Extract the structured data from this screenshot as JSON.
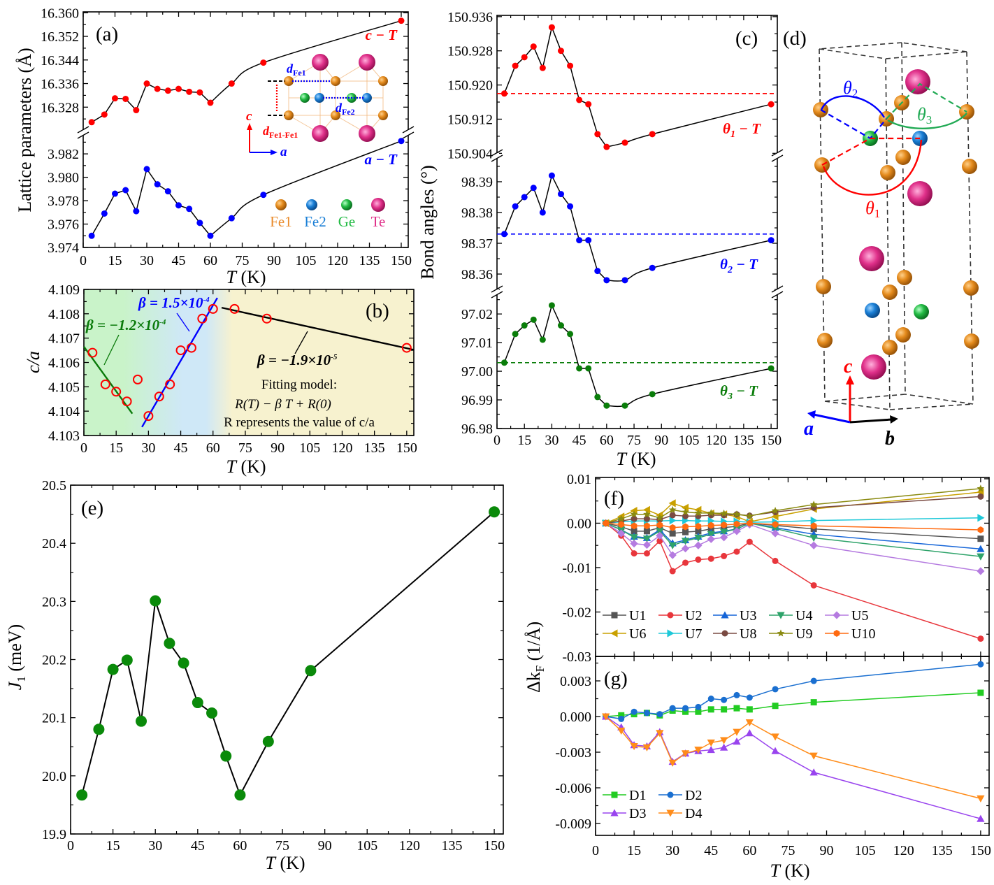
{
  "chart_data": [
    {
      "id": "a",
      "panel_label": "(a)",
      "type": "line",
      "xlabel_var": "T",
      "xlabel_unit": " (K)",
      "ylabel": "Lattice parameters (Å)",
      "x": [
        4,
        10,
        15,
        20,
        25,
        30,
        35,
        40,
        45,
        50,
        55,
        60,
        70,
        85,
        150
      ],
      "xlim": [
        0,
        153.3
      ],
      "xticks": [
        "0",
        "15",
        "30",
        "45",
        "60",
        "75",
        "90",
        "105",
        "120",
        "135",
        "150"
      ],
      "yaxes": [
        {
          "ylim": [
            16.3193,
            16.3603
          ],
          "yticks": [
            "16.328",
            "16.336",
            "16.344",
            "16.352",
            "16.360"
          ]
        },
        {
          "ylim": [
            3.974,
            3.9838
          ],
          "yticks": [
            "3.974",
            "3.976",
            "3.978",
            "3.980",
            "3.982"
          ]
        }
      ],
      "series": [
        {
          "name": "c − T",
          "axis": 0,
          "color": "#ff0000",
          "line": "#000000",
          "marker": "circle",
          "values": [
            16.3229,
            16.3255,
            16.331,
            16.3308,
            16.327,
            16.336,
            16.3342,
            16.3336,
            16.3342,
            16.3332,
            16.333,
            16.3295,
            16.336,
            16.3431,
            16.3573
          ]
        },
        {
          "name": "a − T",
          "axis": 1,
          "color": "#0000ff",
          "line": "#000000",
          "marker": "circle",
          "values": [
            3.975,
            3.9769,
            3.9786,
            3.9789,
            3.9771,
            3.9807,
            3.9794,
            3.9788,
            3.9776,
            3.9773,
            3.9761,
            3.975,
            3.9765,
            3.9785,
            3.9831
          ]
        }
      ],
      "inset": {
        "d_fe1": "d",
        "d_fe1_sub": "Fe1",
        "d_fe2": "d",
        "d_fe2_sub": "Fe2",
        "d_fe1fe1": "d",
        "d_fe1fe1_sub": "Fe1-Fe1",
        "axis_c": "c",
        "axis_a": "a",
        "legend": [
          {
            "label": "Fe1",
            "color": "#e98a2a"
          },
          {
            "label": "Fe2",
            "color": "#1a7fd6"
          },
          {
            "label": "Ge",
            "color": "#22bb44"
          },
          {
            "label": "Te",
            "color": "#e0308a"
          }
        ]
      }
    },
    {
      "id": "b",
      "panel_label": "(b)",
      "type": "scatter",
      "xlabel_var": "T",
      "xlabel_unit": " (K)",
      "ylabel": "c/a",
      "x": [
        4,
        10,
        15,
        20,
        25,
        30,
        35,
        40,
        45,
        50,
        55,
        60,
        70,
        85,
        150
      ],
      "xlim": [
        0,
        153.3
      ],
      "xticks": [
        "0",
        "15",
        "30",
        "45",
        "60",
        "75",
        "90",
        "105",
        "120",
        "135",
        "150"
      ],
      "yaxes": [
        {
          "ylim": [
            4.103,
            4.109
          ],
          "yticks": [
            "4.103",
            "4.104",
            "4.105",
            "4.106",
            "4.107",
            "4.108",
            "4.109"
          ]
        }
      ],
      "series": [
        {
          "name": "c/a",
          "axis": 0,
          "color": "#ff0000",
          "marker": "open-circle",
          "values": [
            4.1064,
            4.1051,
            4.1048,
            4.1044,
            4.1053,
            4.1038,
            4.1046,
            4.1051,
            4.1065,
            4.1066,
            4.1078,
            4.1082,
            4.1082,
            4.1078,
            4.1066
          ]
        }
      ],
      "fits": [
        {
          "label": "β = −1.2×10",
          "exp": "-4",
          "color": "#0a7a0a",
          "from": [
            0,
            4.10665
          ],
          "to": [
            22.5,
            4.1039
          ]
        },
        {
          "label": "β = 1.5×10",
          "exp": "-4",
          "color": "#0000ff",
          "from": [
            27,
            4.10335
          ],
          "to": [
            62,
            4.10865
          ]
        },
        {
          "label": "β = −1.9×10",
          "exp": "-5",
          "color": "#000000",
          "from": [
            64,
            4.10825
          ],
          "to": [
            153.3,
            4.10652
          ]
        }
      ],
      "background": [
        "#c9f3c9",
        "#cfe8f7",
        "#f7f2cf"
      ],
      "model_title": "Fitting model:",
      "model_eq": "R(T) − β T + R(0)",
      "model_note": "R represents the value of c/a"
    },
    {
      "id": "c",
      "panel_label": "(c)",
      "type": "line",
      "xlabel_var": "T",
      "xlabel_unit": " (K)",
      "ylabel": "Bond angles (°)",
      "x": [
        4,
        10,
        15,
        20,
        25,
        30,
        35,
        40,
        45,
        50,
        55,
        60,
        70,
        85,
        150
      ],
      "xlim": [
        0,
        153.4
      ],
      "xticks": [
        "0",
        "15",
        "30",
        "45",
        "60",
        "75",
        "90",
        "105",
        "120",
        "135",
        "150"
      ],
      "yaxes": [
        {
          "ylim": [
            150.9034,
            150.9363
          ],
          "yticks": [
            "150.904",
            "150.912",
            "150.920",
            "150.928",
            "150.936"
          ]
        },
        {
          "ylim": [
            98.3541,
            98.3984
          ],
          "yticks": [
            "98.36",
            "98.37",
            "98.38",
            "98.39"
          ]
        },
        {
          "ylim": [
            96.98,
            97.0276
          ],
          "yticks": [
            "96.98",
            "96.99",
            "97.00",
            "97.01",
            "97.02"
          ]
        }
      ],
      "series": [
        {
          "name": "θ",
          "sub": "1",
          "rest": " − T",
          "axis": 0,
          "color": "#ff0000",
          "line": "#000000",
          "marker": "circle",
          "ref": 150.918,
          "values": [
            150.918,
            150.9245,
            150.9265,
            150.929,
            150.924,
            150.9335,
            150.928,
            150.9245,
            150.9165,
            150.9155,
            150.9085,
            150.9055,
            150.9065,
            150.9085,
            150.9155
          ]
        },
        {
          "name": "θ",
          "sub": "2",
          "rest": " − T",
          "axis": 1,
          "color": "#0000ff",
          "line": "#000000",
          "marker": "circle",
          "ref": 98.373,
          "values": [
            98.373,
            98.382,
            98.385,
            98.388,
            98.38,
            98.392,
            98.386,
            98.382,
            98.371,
            98.371,
            98.361,
            98.358,
            98.358,
            98.362,
            98.371
          ]
        },
        {
          "name": "θ",
          "sub": "3",
          "rest": " − T",
          "axis": 2,
          "color": "#0a7d0a",
          "line": "#000000",
          "marker": "circle",
          "ref": 97.003,
          "values": [
            97.003,
            97.013,
            97.016,
            97.018,
            97.011,
            97.023,
            97.016,
            97.013,
            97.001,
            97.001,
            96.991,
            96.988,
            96.988,
            96.992,
            97.001
          ]
        }
      ]
    },
    {
      "id": "e",
      "panel_label": "(e)",
      "type": "line",
      "xlabel_var": "T",
      "xlabel_unit": " (K)",
      "ylabel_var": "J",
      "ylabel_sub": "1",
      "ylabel_unit": " (meV)",
      "x": [
        4,
        10,
        15,
        20,
        25,
        30,
        35,
        40,
        45,
        50,
        55,
        60,
        70,
        85,
        150
      ],
      "xlim": [
        0,
        153.2
      ],
      "xticks": [
        "0",
        "15",
        "30",
        "45",
        "60",
        "75",
        "90",
        "105",
        "120",
        "135",
        "150"
      ],
      "yaxes": [
        {
          "ylim": [
            19.9,
            20.5
          ],
          "yticks": [
            "19.9",
            "20.0",
            "20.1",
            "20.2",
            "20.3",
            "20.4",
            "20.5"
          ]
        }
      ],
      "series": [
        {
          "name": "J1",
          "axis": 0,
          "color": "#0a8a0a",
          "line": "#000000",
          "marker": "big-circle",
          "values": [
            19.967,
            20.08,
            20.183,
            20.199,
            20.094,
            20.301,
            20.228,
            20.194,
            20.126,
            20.108,
            20.034,
            19.967,
            20.059,
            20.181,
            20.454
          ]
        }
      ]
    },
    {
      "id": "f",
      "panel_label": "(f)",
      "type": "line",
      "ylabel_var": "Δk",
      "ylabel_sub": "F",
      "ylabel_unit": " (1/Å)",
      "x": [
        4,
        10,
        15,
        20,
        25,
        30,
        35,
        40,
        45,
        50,
        55,
        60,
        70,
        85,
        150
      ],
      "xlim": [
        0,
        153.3
      ],
      "xticks": [
        "0",
        "15",
        "30",
        "45",
        "60",
        "75",
        "90",
        "105",
        "120",
        "135",
        "150"
      ],
      "yaxes": [
        {
          "ylim": [
            -0.03,
            0.0103
          ],
          "yticks": [
            "-0.03",
            "-0.02",
            "-0.01",
            "0.00",
            "0.01"
          ]
        }
      ],
      "legend": "bottom-left",
      "series": [
        {
          "name": "U1",
          "color": "#555555",
          "marker": "square",
          "values": [
            0,
            -0.0008,
            -0.0018,
            -0.0018,
            -0.001,
            -0.0023,
            -0.002,
            -0.0018,
            -0.0013,
            -0.001,
            -0.0007,
            0,
            -0.0005,
            -0.0013,
            -0.0035
          ]
        },
        {
          "name": "U2",
          "color": "#e8363c",
          "marker": "circle",
          "values": [
            0,
            -0.0028,
            -0.0068,
            -0.0068,
            -0.004,
            -0.0108,
            -0.0089,
            -0.0082,
            -0.008,
            -0.0074,
            -0.0064,
            -0.0042,
            -0.0085,
            -0.014,
            -0.026
          ]
        },
        {
          "name": "U3",
          "color": "#1565d8",
          "marker": "triangle-up",
          "values": [
            0,
            -0.0015,
            -0.003,
            -0.0033,
            -0.0015,
            -0.0045,
            -0.0038,
            -0.003,
            -0.0022,
            -0.0018,
            -0.0013,
            0,
            -0.001,
            -0.0025,
            -0.0058
          ]
        },
        {
          "name": "U4",
          "color": "#2ea36a",
          "marker": "triangle-down",
          "values": [
            0,
            -0.0015,
            -0.0032,
            -0.0035,
            -0.0018,
            -0.005,
            -0.004,
            -0.0033,
            -0.0025,
            -0.002,
            -0.0013,
            0,
            -0.0012,
            -0.0033,
            -0.0075
          ]
        },
        {
          "name": "U5",
          "color": "#b57be0",
          "marker": "diamond",
          "values": [
            0,
            -0.0023,
            -0.0046,
            -0.0049,
            -0.0028,
            -0.0072,
            -0.0057,
            -0.005,
            -0.0036,
            -0.0032,
            -0.0018,
            -0.0003,
            -0.0023,
            -0.005,
            -0.0108
          ]
        },
        {
          "name": "U6",
          "color": "#c9a000",
          "marker": "triangle-left",
          "values": [
            0,
            0.0015,
            0.0028,
            0.003,
            0.0018,
            0.0045,
            0.0035,
            0.003,
            0.0022,
            0.002,
            0.0015,
            0.0003,
            0.0015,
            0.0032,
            0.007
          ]
        },
        {
          "name": "U7",
          "color": "#1ec8d8",
          "marker": "triangle-right",
          "values": [
            0,
            0.0003,
            0.0005,
            0.0005,
            0.0005,
            0.0006,
            0.0006,
            0.0005,
            0.0005,
            0.0004,
            0.0004,
            0.0002,
            0.0003,
            0.0006,
            0.0012
          ]
        },
        {
          "name": "U8",
          "color": "#7a4a42",
          "marker": "circle",
          "values": [
            0,
            0.0005,
            0.001,
            0.001,
            0.0008,
            0.0018,
            0.0016,
            0.0016,
            0.0018,
            0.0018,
            0.002,
            0.0017,
            0.0025,
            0.0035,
            0.006
          ]
        },
        {
          "name": "U9",
          "color": "#8a8a10",
          "marker": "star",
          "values": [
            0,
            0.001,
            0.002,
            0.002,
            0.0012,
            0.003,
            0.0025,
            0.0023,
            0.0023,
            0.0022,
            0.002,
            0.0016,
            0.0028,
            0.0042,
            0.0078
          ]
        },
        {
          "name": "U10",
          "color": "#ff6a10",
          "marker": "hexagon",
          "values": [
            0,
            -0.0003,
            -0.0006,
            -0.0006,
            -0.0004,
            -0.001,
            -0.0008,
            -0.0007,
            -0.0005,
            -0.0004,
            -0.0002,
            0,
            -0.0003,
            -0.0006,
            -0.0015
          ]
        }
      ]
    },
    {
      "id": "g",
      "panel_label": "(g)",
      "type": "line",
      "xlabel_var": "T",
      "xlabel_unit": " (K)",
      "x": [
        4,
        10,
        15,
        20,
        25,
        30,
        35,
        40,
        45,
        50,
        55,
        60,
        70,
        85,
        150
      ],
      "xlim": [
        0,
        153.3
      ],
      "xticks": [
        "0",
        "15",
        "30",
        "45",
        "60",
        "75",
        "90",
        "105",
        "120",
        "135",
        "150"
      ],
      "yaxes": [
        {
          "ylim": [
            -0.01,
            0.00506
          ],
          "yticks": [
            "-0.009",
            "-0.006",
            "-0.003",
            "0.000",
            "0.003"
          ]
        }
      ],
      "legend": "bottom-left",
      "series": [
        {
          "name": "D1",
          "color": "#22cc22",
          "marker": "square",
          "values": [
            0,
            0.0001,
            0.0002,
            0.0003,
            0.0001,
            0.0005,
            0.0004,
            0.0004,
            0.0006,
            0.0006,
            0.0007,
            0.0006,
            0.0009,
            0.0012,
            0.002
          ]
        },
        {
          "name": "D2",
          "color": "#1a6fd0",
          "marker": "circle",
          "values": [
            0,
            -0.0002,
            0.0004,
            0.0003,
            0.0002,
            0.0007,
            0.0007,
            0.0008,
            0.0015,
            0.0014,
            0.0018,
            0.0016,
            0.0023,
            0.003,
            0.0044
          ]
        },
        {
          "name": "D3",
          "color": "#9944ee",
          "marker": "triangle-up",
          "values": [
            0,
            -0.0009,
            -0.0024,
            -0.0025,
            -0.0013,
            -0.0038,
            -0.0031,
            -0.0029,
            -0.0028,
            -0.0026,
            -0.0021,
            -0.0014,
            -0.0029,
            -0.0047,
            -0.0086
          ]
        },
        {
          "name": "D4",
          "color": "#ff8c1a",
          "marker": "triangle-down",
          "values": [
            0,
            -0.0012,
            -0.0025,
            -0.0026,
            -0.0014,
            -0.0039,
            -0.0031,
            -0.0028,
            -0.0022,
            -0.002,
            -0.0013,
            -0.0005,
            -0.0017,
            -0.0033,
            -0.0069
          ]
        }
      ]
    }
  ],
  "diagram_d": {
    "panel_label": "(d)",
    "theta1": "θ",
    "theta1_sub": "1",
    "theta2": "θ",
    "theta2_sub": "2",
    "theta3": "θ",
    "theta3_sub": "3",
    "axis_a": "a",
    "axis_b": "b",
    "axis_c": "c",
    "colors": {
      "fe1": "#e48a1c",
      "fe2": "#1a7fd6",
      "ge": "#22bb44",
      "te": "#e0308a"
    }
  }
}
